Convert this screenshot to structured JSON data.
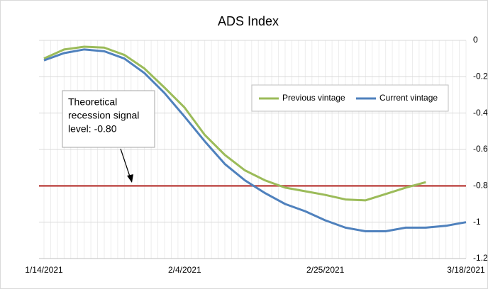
{
  "chart_data": {
    "type": "line",
    "title": "ADS Index",
    "categories": [
      "1/14/2021",
      null,
      null,
      null,
      null,
      null,
      null,
      "2/4/2021",
      null,
      null,
      null,
      null,
      null,
      null,
      "2/25/2021",
      null,
      null,
      null,
      null,
      null,
      null,
      "3/18/2021"
    ],
    "series": [
      {
        "name": "Previous vintage",
        "color": "#9bbb59",
        "values": [
          -0.1,
          -0.05,
          -0.035,
          -0.04,
          -0.08,
          -0.155,
          -0.26,
          -0.37,
          -0.52,
          -0.63,
          -0.715,
          -0.77,
          -0.81,
          -0.83,
          -0.85,
          -0.875,
          -0.88,
          -0.845,
          -0.81,
          -0.78,
          null,
          null
        ]
      },
      {
        "name": "Current vintage",
        "color": "#4f81bd",
        "values": [
          -0.11,
          -0.07,
          -0.05,
          -0.06,
          -0.1,
          -0.18,
          -0.29,
          -0.42,
          -0.555,
          -0.68,
          -0.77,
          -0.84,
          -0.9,
          -0.94,
          -0.99,
          -1.03,
          -1.05,
          -1.05,
          -1.03,
          -1.03,
          -1.02,
          -1.0
        ]
      }
    ],
    "reference_line": {
      "value": -0.8,
      "color": "#c0504d"
    },
    "annotation": [
      "Theoretical",
      "recession signal",
      "level: -0.80"
    ],
    "ylim": [
      -1.2,
      0
    ],
    "yticks": [
      0,
      -0.2,
      -0.4,
      -0.6,
      -0.8,
      -1,
      -1.2
    ],
    "grid": true,
    "y_axis_side": "right",
    "legend": "upper right"
  }
}
